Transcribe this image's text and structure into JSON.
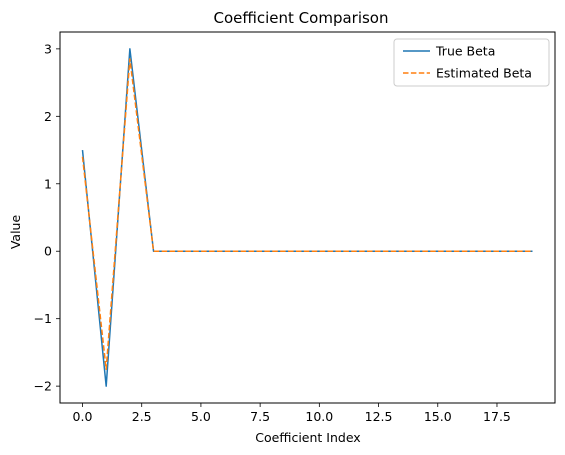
{
  "chart_data": {
    "type": "line",
    "title": "Coefficient Comparison",
    "xlabel": "Coefficient Index",
    "ylabel": "Value",
    "xlim": [
      -0.95,
      19.95
    ],
    "ylim": [
      -2.25,
      3.25
    ],
    "x_ticks": [
      0,
      2.5,
      5,
      7.5,
      10,
      12.5,
      15,
      17.5
    ],
    "x_tick_labels": [
      "0.0",
      "2.5",
      "5.0",
      "7.5",
      "10.0",
      "12.5",
      "15.0",
      "17.5"
    ],
    "y_ticks": [
      -2,
      -1,
      0,
      1,
      2,
      3
    ],
    "y_tick_labels": [
      "−2",
      "−1",
      "0",
      "1",
      "2",
      "3"
    ],
    "grid": false,
    "legend_position": "top-right",
    "x": [
      0,
      1,
      2,
      3,
      4,
      5,
      6,
      7,
      8,
      9,
      10,
      11,
      12,
      13,
      14,
      15,
      16,
      17,
      18,
      19
    ],
    "series": [
      {
        "name": "True Beta",
        "color": "#1f77b4",
        "style": "solid",
        "values": [
          1.5,
          -2,
          3,
          0,
          0,
          0,
          0,
          0,
          0,
          0,
          0,
          0,
          0,
          0,
          0,
          0,
          0,
          0,
          0,
          0
        ]
      },
      {
        "name": "Estimated Beta",
        "color": "#ff7f0e",
        "style": "dashed",
        "values": [
          1.4,
          -1.75,
          2.85,
          0,
          0,
          0,
          0,
          0,
          0,
          0,
          0,
          0,
          0,
          0,
          0,
          0,
          0,
          0,
          0,
          0
        ]
      }
    ]
  }
}
